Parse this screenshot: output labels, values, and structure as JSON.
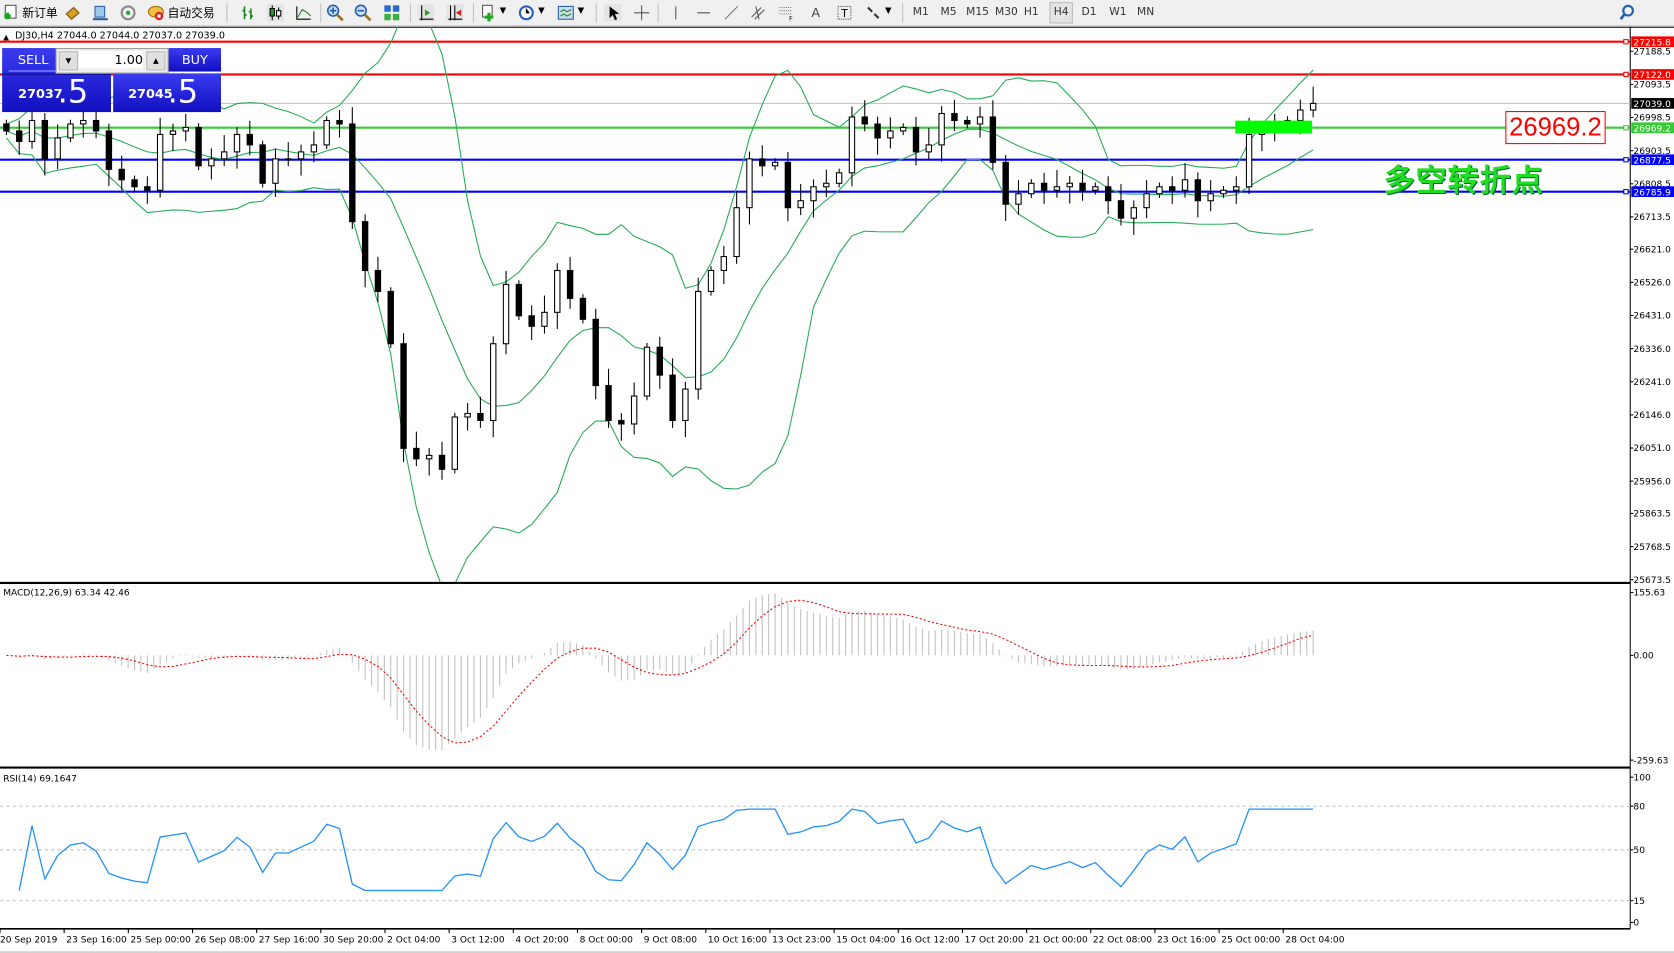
{
  "toolbar": {
    "new_order": "新订单",
    "auto_trading": "自动交易",
    "periods": [
      "M1",
      "M5",
      "M15",
      "M30",
      "H1",
      "H4",
      "D1",
      "W1",
      "MN"
    ],
    "active_period": "H4"
  },
  "chart_header": "DJ30,H4  27044.0 27044.0 27037.0 27039.0",
  "trade_panel": {
    "sell_label": "SELL",
    "buy_label": "BUY",
    "lot": "1.00",
    "sell_price_main": "27037",
    "sell_price_frac": ".5",
    "buy_price_main": "27045",
    "buy_price_frac": ".5"
  },
  "annotations": {
    "price_box": "26969.2",
    "pivot_text": "多空转折点"
  },
  "colors": {
    "resistance": "#ff0000",
    "pivot": "#33cc33",
    "support": "#0000ff",
    "bands": "#22aa55",
    "rsi": "#1e90ff",
    "macd_signal": "#ff0000",
    "macd_hist": "#c0c0c0",
    "highlight": "#00ff00"
  },
  "chart_data": {
    "type": "candlestick",
    "symbol": "DJ30",
    "timeframe": "H4",
    "price_axis_ticks": [
      "27188.5",
      "27093.5",
      "26998.5",
      "26903.5",
      "26808.5",
      "26713.5",
      "26621.0",
      "26526.0",
      "26431.0",
      "26336.0",
      "26241.0",
      "26146.0",
      "26051.0",
      "25956.0",
      "25863.5",
      "25768.5",
      "25673.5"
    ],
    "ylim": [
      25673.5,
      27188.5
    ],
    "horizontal_lines": [
      {
        "price": 27215.8,
        "label": "27215.8",
        "color": "#ff0000"
      },
      {
        "price": 27122.0,
        "label": "27122.0",
        "color": "#ff0000"
      },
      {
        "price": 27039.0,
        "label": "27039.0",
        "color": "#000000"
      },
      {
        "price": 26969.2,
        "label": "26969.2",
        "color": "#33cc33"
      },
      {
        "price": 26877.5,
        "label": "26877.5",
        "color": "#0000ff"
      },
      {
        "price": 26785.9,
        "label": "26785.9",
        "color": "#0000ff"
      }
    ],
    "closes": [
      26960,
      26930,
      26990,
      26880,
      26940,
      26980,
      26990,
      26960,
      26850,
      26820,
      26800,
      26790,
      26950,
      26960,
      26970,
      26860,
      26880,
      26900,
      26950,
      26920,
      26810,
      26880,
      26880,
      26900,
      26920,
      26990,
      26980,
      26700,
      26560,
      26500,
      26350,
      26050,
      26020,
      26030,
      25990,
      26140,
      26150,
      26130,
      26350,
      26520,
      26430,
      26400,
      26440,
      26560,
      26480,
      26420,
      26230,
      26130,
      26120,
      26200,
      26340,
      26260,
      26130,
      26220,
      26500,
      26560,
      26600,
      26740,
      26880,
      26860,
      26870,
      26740,
      26760,
      26800,
      26810,
      26840,
      27000,
      26980,
      26940,
      26960,
      26970,
      26900,
      26920,
      27010,
      26990,
      26980,
      27000,
      26870,
      26750,
      26780,
      26810,
      26790,
      26800,
      26810,
      26790,
      26800,
      26760,
      26710,
      26740,
      26780,
      26800,
      26790,
      26820,
      26760,
      26780,
      26790,
      26800,
      26950,
      26960,
      26970,
      26990,
      27020,
      27039
    ],
    "time_labels": [
      "20 Sep 2019",
      "23 Sep 16:00",
      "25 Sep 00:00",
      "26 Sep 08:00",
      "27 Sep 16:00",
      "30 Sep 20:00",
      "2 Oct 04:00",
      "3 Oct 12:00",
      "4 Oct 20:00",
      "8 Oct 00:00",
      "9 Oct 08:00",
      "10 Oct 16:00",
      "13 Oct 23:00",
      "15 Oct 04:00",
      "16 Oct 12:00",
      "17 Oct 20:00",
      "21 Oct 00:00",
      "22 Oct 08:00",
      "23 Oct 16:00",
      "25 Oct 00:00",
      "28 Oct 04:00"
    ],
    "indicators": {
      "bollinger": {
        "shown": true
      },
      "macd": {
        "label": "MACD(12,26,9) 63.34 42.46",
        "ticks": [
          "155.63",
          "0.00",
          "-259.63"
        ],
        "ylim": [
          -259.63,
          155.63
        ]
      },
      "rsi": {
        "label": "RSI(14) 69.1647",
        "ticks": [
          "100",
          "80",
          "50",
          "15",
          "0"
        ],
        "levels": [
          80,
          50,
          15
        ],
        "ylim": [
          0,
          100
        ]
      }
    }
  }
}
